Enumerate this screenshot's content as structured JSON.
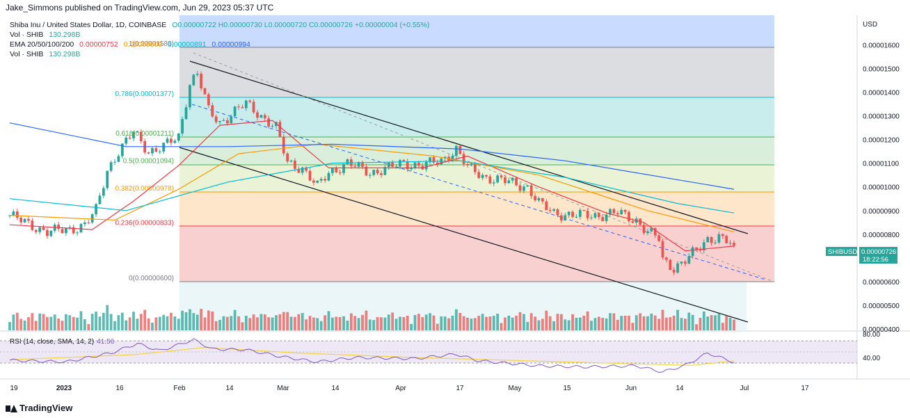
{
  "header": {
    "attribution": "Jake_Simmons published on TradingView.com, Jun 29, 2023 05:37 UTC"
  },
  "legend": {
    "title": "Shiba Inu / United States Dollar, 1D, COINBASE",
    "ohlc": "O0.00000722 H0.00000730 L0.00000720 C0.00000726 +0.00000004 (+0.55%)",
    "vol1_label": "Vol · SHIB",
    "vol1_value": "130.298B",
    "ema_label": "EMA 20/50/100/200",
    "ema20": "0.00000752",
    "ema50": "0.00000809",
    "ema100": "0.00000891",
    "ema200": "0.00000994",
    "vol2_label": "Vol · SHIB",
    "vol2_value": "130.298B"
  },
  "colors": {
    "up": "#26a69a",
    "down": "#ef5350",
    "ema20": "#f23645",
    "ema50": "#ff9800",
    "ema100": "#00bcd4",
    "ema200": "#2962ff",
    "rsi": "#7e57c2",
    "rsi_sma": "#f5d442",
    "fib_0": "#f8c7c7",
    "fib_236": "#fde3c7",
    "fib_382": "#eef6d0",
    "fib_5": "#d6f0d8",
    "fib_618": "#c7ecec",
    "fib_786": "#dcdcdc",
    "fib_1": "#c9dbff"
  },
  "price_axis": {
    "unit": "USD",
    "ticks": [
      "0.00001600",
      "0.00001500",
      "0.00001400",
      "0.00001300",
      "0.00001200",
      "0.00001100",
      "0.00001000",
      "0.00000900",
      "0.00000800",
      "0.00000600",
      "0.00000500",
      "0.00000400"
    ],
    "symbol": "SHIBUSD",
    "last_price": "0.00000726",
    "countdown": "18:22:56"
  },
  "time_axis": {
    "ticks": [
      "19",
      "2023",
      "16",
      "Feb",
      "14",
      "Mar",
      "14",
      "Apr",
      "17",
      "May",
      "15",
      "Jun",
      "14",
      "Jul",
      "17"
    ]
  },
  "fib_labels": [
    "1(0.00001589)",
    "0.786(0.00001377)",
    "0.618(0.00001211)",
    "0.5(0.00001094)",
    "0.382(0.00000978)",
    "0.236(0.00000833)",
    "0(0.00000600)"
  ],
  "rsi": {
    "label": "RSI (14, close, SMA, 14, 2)",
    "value": "41.56",
    "ticks": [
      "80.00",
      "40.00"
    ]
  },
  "footer": {
    "brand": "TradingView"
  },
  "chart_data": {
    "type": "candlestick",
    "symbol": "SHIBUSD",
    "x_range": [
      "2022-12-18",
      "2023-06-29"
    ],
    "y_range": [
      4e-06,
      1.65e-05
    ],
    "fib_retracement": {
      "levels": [
        0,
        0.236,
        0.382,
        0.5,
        0.618,
        0.786,
        1
      ],
      "prices": [
        6e-06,
        8.33e-06,
        9.78e-06,
        1.094e-05,
        1.211e-05,
        1.377e-05,
        1.589e-05
      ]
    },
    "close_path": [
      [
        "2022-12-18",
        8.8e-06
      ],
      [
        "2022-12-22",
        8.5e-06
      ],
      [
        "2022-12-28",
        8.1e-06
      ],
      [
        "2023-01-03",
        8.2e-06
      ],
      [
        "2023-01-07",
        8.4e-06
      ],
      [
        "2023-01-10",
        9e-06
      ],
      [
        "2023-01-13",
        1.07e-05
      ],
      [
        "2023-01-16",
        1.15e-05
      ],
      [
        "2023-01-20",
        1.23e-05
      ],
      [
        "2023-01-24",
        1.15e-05
      ],
      [
        "2023-01-28",
        1.17e-05
      ],
      [
        "2023-02-01",
        1.21e-05
      ],
      [
        "2023-02-04",
        1.44e-05
      ],
      [
        "2023-02-06",
        1.48e-05
      ],
      [
        "2023-02-09",
        1.32e-05
      ],
      [
        "2023-02-12",
        1.27e-05
      ],
      [
        "2023-02-16",
        1.32e-05
      ],
      [
        "2023-02-19",
        1.35e-05
      ],
      [
        "2023-02-23",
        1.3e-05
      ],
      [
        "2023-02-27",
        1.25e-05
      ],
      [
        "2023-03-02",
        1.1e-05
      ],
      [
        "2023-03-06",
        1.08e-05
      ],
      [
        "2023-03-10",
        1e-05
      ],
      [
        "2023-03-13",
        1.06e-05
      ],
      [
        "2023-03-18",
        1.1e-05
      ],
      [
        "2023-03-24",
        1.06e-05
      ],
      [
        "2023-03-29",
        1.08e-05
      ],
      [
        "2023-04-02",
        1.1e-05
      ],
      [
        "2023-04-07",
        1.09e-05
      ],
      [
        "2023-04-12",
        1.11e-05
      ],
      [
        "2023-04-16",
        1.16e-05
      ],
      [
        "2023-04-19",
        1.08e-05
      ],
      [
        "2023-04-24",
        1.04e-05
      ],
      [
        "2023-04-30",
        1.02e-05
      ],
      [
        "2023-05-05",
        1e-05
      ],
      [
        "2023-05-08",
        9.3e-06
      ],
      [
        "2023-05-12",
        8.9e-06
      ],
      [
        "2023-05-17",
        8.8e-06
      ],
      [
        "2023-05-24",
        8.8e-06
      ],
      [
        "2023-05-29",
        8.9e-06
      ],
      [
        "2023-06-03",
        8.6e-06
      ],
      [
        "2023-06-06",
        8.1e-06
      ],
      [
        "2023-06-09",
        7.8e-06
      ],
      [
        "2023-06-10",
        6.9e-06
      ],
      [
        "2023-06-13",
        6.6e-06
      ],
      [
        "2023-06-16",
        6.9e-06
      ],
      [
        "2023-06-19",
        7.3e-06
      ],
      [
        "2023-06-22",
        7.8e-06
      ],
      [
        "2023-06-25",
        7.9e-06
      ],
      [
        "2023-06-28",
        7.6e-06
      ],
      [
        "2023-06-29",
        7.26e-06
      ]
    ],
    "ema20_path": [
      [
        "2022-12-18",
        8.4e-06
      ],
      [
        "2023-01-09",
        8.2e-06
      ],
      [
        "2023-01-20",
        9.4e-06
      ],
      [
        "2023-02-01",
        1.09e-05
      ],
      [
        "2023-02-12",
        1.26e-05
      ],
      [
        "2023-02-26",
        1.28e-05
      ],
      [
        "2023-03-13",
        1.08e-05
      ],
      [
        "2023-04-07",
        1.08e-05
      ],
      [
        "2023-04-19",
        1.13e-05
      ],
      [
        "2023-05-08",
        1e-05
      ],
      [
        "2023-05-26",
        8.9e-06
      ],
      [
        "2023-06-05",
        8.5e-06
      ],
      [
        "2023-06-16",
        7.3e-06
      ],
      [
        "2023-06-29",
        7.5e-06
      ]
    ],
    "ema50_path": [
      [
        "2022-12-18",
        8.8e-06
      ],
      [
        "2023-01-15",
        8.6e-06
      ],
      [
        "2023-02-01",
        9.9e-06
      ],
      [
        "2023-02-17",
        1.14e-05
      ],
      [
        "2023-03-10",
        1.18e-05
      ],
      [
        "2023-04-10",
        1.13e-05
      ],
      [
        "2023-05-08",
        1.05e-05
      ],
      [
        "2023-06-06",
        9e-06
      ],
      [
        "2023-06-29",
        8.1e-06
      ]
    ],
    "ema100_path": [
      [
        "2022-12-18",
        9.5e-06
      ],
      [
        "2023-01-18",
        9e-06
      ],
      [
        "2023-02-14",
        1.02e-05
      ],
      [
        "2023-03-14",
        1.1e-05
      ],
      [
        "2023-04-17",
        1.11e-05
      ],
      [
        "2023-05-15",
        1.04e-05
      ],
      [
        "2023-06-14",
        9.3e-06
      ],
      [
        "2023-06-29",
        8.9e-06
      ]
    ],
    "ema200_path": [
      [
        "2022-12-18",
        1.27e-05
      ],
      [
        "2023-01-18",
        1.17e-05
      ],
      [
        "2023-02-14",
        1.17e-05
      ],
      [
        "2023-03-14",
        1.18e-05
      ],
      [
        "2023-04-17",
        1.16e-05
      ],
      [
        "2023-05-15",
        1.11e-05
      ],
      [
        "2023-06-29",
        9.9e-06
      ]
    ],
    "rsi_range": [
      20,
      90
    ],
    "rsi_path": [
      [
        "2022-12-18",
        45
      ],
      [
        "2023-01-02",
        42
      ],
      [
        "2023-01-14",
        58
      ],
      [
        "2023-01-21",
        75
      ],
      [
        "2023-01-27",
        62
      ],
      [
        "2023-02-05",
        82
      ],
      [
        "2023-02-10",
        65
      ],
      [
        "2023-02-19",
        64
      ],
      [
        "2023-02-28",
        52
      ],
      [
        "2023-03-10",
        42
      ],
      [
        "2023-03-20",
        50
      ],
      [
        "2023-04-05",
        48
      ],
      [
        "2023-04-16",
        56
      ],
      [
        "2023-04-22",
        44
      ],
      [
        "2023-05-08",
        35
      ],
      [
        "2023-05-20",
        33
      ],
      [
        "2023-06-03",
        35
      ],
      [
        "2023-06-10",
        24
      ],
      [
        "2023-06-16",
        36
      ],
      [
        "2023-06-22",
        58
      ],
      [
        "2023-06-29",
        41.56
      ]
    ],
    "rsi_sma_path": [
      [
        "2022-12-18",
        46
      ],
      [
        "2023-01-20",
        55
      ],
      [
        "2023-02-08",
        68
      ],
      [
        "2023-03-05",
        58
      ],
      [
        "2023-04-05",
        50
      ],
      [
        "2023-05-05",
        44
      ],
      [
        "2023-06-05",
        38
      ],
      [
        "2023-06-18",
        36
      ],
      [
        "2023-06-29",
        44
      ]
    ]
  }
}
